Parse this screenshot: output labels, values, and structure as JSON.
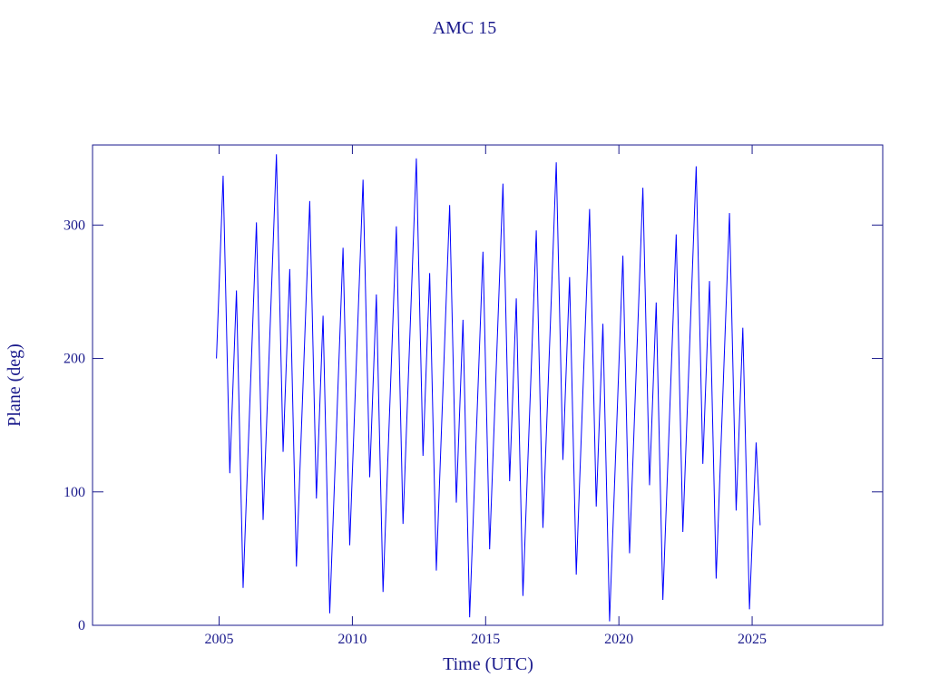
{
  "chart_data": {
    "type": "line",
    "title": "AMC 15",
    "xlabel": "Time (UTC)",
    "ylabel": "Plane (deg)",
    "xlim": [
      2000.25,
      2029.9
    ],
    "ylim": [
      0,
      360
    ],
    "xticks": [
      2005,
      2010,
      2015,
      2020,
      2025
    ],
    "yticks": [
      0,
      100,
      200,
      300
    ],
    "x": [
      2004.9,
      2005.15,
      2005.4,
      2005.65,
      2005.9,
      2006.15,
      2006.4,
      2006.65,
      2006.9,
      2007.15,
      2007.4,
      2007.65,
      2007.9,
      2008.15,
      2008.4,
      2008.65,
      2008.9,
      2009.15,
      2009.4,
      2009.65,
      2009.9,
      2010.15,
      2010.4,
      2010.65,
      2010.9,
      2011.15,
      2011.4,
      2011.65,
      2011.9,
      2012.15,
      2012.4,
      2012.65,
      2012.9,
      2013.15,
      2013.4,
      2013.65,
      2013.9,
      2014.15,
      2014.4,
      2014.65,
      2014.9,
      2015.15,
      2015.4,
      2015.65,
      2015.9,
      2016.15,
      2016.4,
      2016.65,
      2016.9,
      2017.15,
      2017.4,
      2017.65,
      2017.9,
      2018.15,
      2018.4,
      2018.65,
      2018.9,
      2019.15,
      2019.4,
      2019.65,
      2019.9,
      2020.15,
      2020.4,
      2020.65,
      2020.9,
      2021.15,
      2021.4,
      2021.65,
      2021.9,
      2022.15,
      2022.4,
      2022.65,
      2022.9,
      2023.15,
      2023.4,
      2023.65,
      2023.9,
      2024.15,
      2024.4,
      2024.65,
      2024.9,
      2025.15,
      2025.3
    ],
    "series": [
      {
        "color": "#0000ff",
        "values": [
          200,
          337,
          114,
          251,
          28,
          165,
          302,
          79,
          216,
          353,
          130,
          267,
          44,
          181,
          318,
          95,
          232,
          9,
          146,
          283,
          60,
          197,
          334,
          111,
          248,
          25,
          162,
          299,
          76,
          213,
          350,
          127,
          264,
          41,
          178,
          315,
          92,
          229,
          6,
          143,
          280,
          57,
          194,
          331,
          108,
          245,
          22,
          159,
          296,
          73,
          210,
          347,
          124,
          261,
          38,
          175,
          312,
          89,
          226,
          3,
          140,
          277,
          54,
          191,
          328,
          105,
          242,
          19,
          156,
          293,
          70,
          207,
          344,
          121,
          258,
          35,
          172,
          309,
          86,
          223,
          12,
          137,
          75
        ]
      }
    ]
  }
}
